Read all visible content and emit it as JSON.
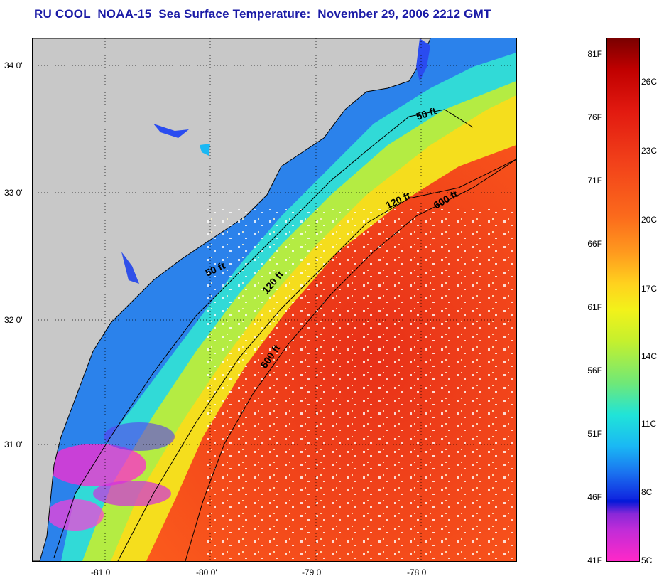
{
  "title": "RU COOL  NOAA-15  Sea Surface Temperature:  November 29, 2006 2212 GMT",
  "colors": {
    "title": "#1a1aa6",
    "land": "#c8c8c8",
    "warm": "#f2421a",
    "cool": "#1a74f0"
  },
  "map": {
    "lat_labels": [
      "34 0'",
      "33 0'",
      "32 0'",
      "31 0'"
    ],
    "lon_labels": [
      "-81 0'",
      "-80 0'",
      "-79 0'",
      "-78 0'"
    ],
    "contours": [
      {
        "label": "50 ft"
      },
      {
        "label": "50 ft"
      },
      {
        "label": "120 ft"
      },
      {
        "label": "120 ft"
      },
      {
        "label": "600 ft"
      },
      {
        "label": "600 ft"
      }
    ]
  },
  "colorbar": {
    "fahrenheit": [
      "81F",
      "76F",
      "71F",
      "66F",
      "61F",
      "56F",
      "51F",
      "46F",
      "41F"
    ],
    "celsius": [
      "26C",
      "23C",
      "20C",
      "17C",
      "14C",
      "11C",
      "8C",
      "5C"
    ]
  }
}
